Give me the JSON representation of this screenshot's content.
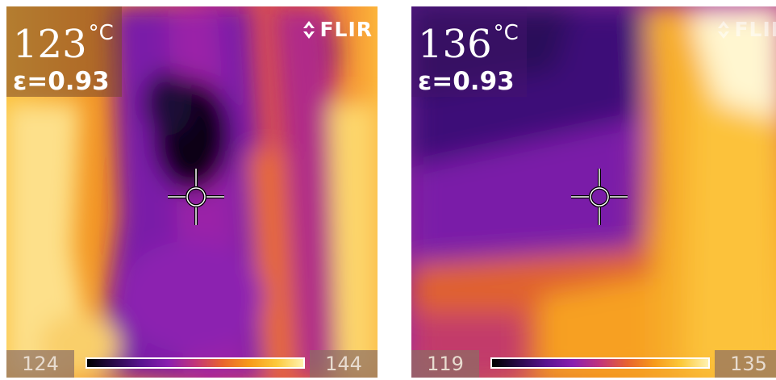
{
  "palette": {
    "iron": [
      "#000000",
      "#2a0a4a",
      "#5a1490",
      "#8a1fb0",
      "#c2347a",
      "#e8632f",
      "#f79a1a",
      "#fcc93a",
      "#fff2b0"
    ]
  },
  "images": [
    {
      "id": "left",
      "spot_temperature": "123",
      "temperature_unit": "°C",
      "emissivity": "ε=0.93",
      "brand": "FLIR",
      "scale_min": "124",
      "scale_max": "144"
    },
    {
      "id": "right",
      "spot_temperature": "136",
      "temperature_unit": "°C",
      "emissivity": "ε=0.93",
      "brand": "FLIR",
      "scale_min": "119",
      "scale_max": "135"
    }
  ]
}
